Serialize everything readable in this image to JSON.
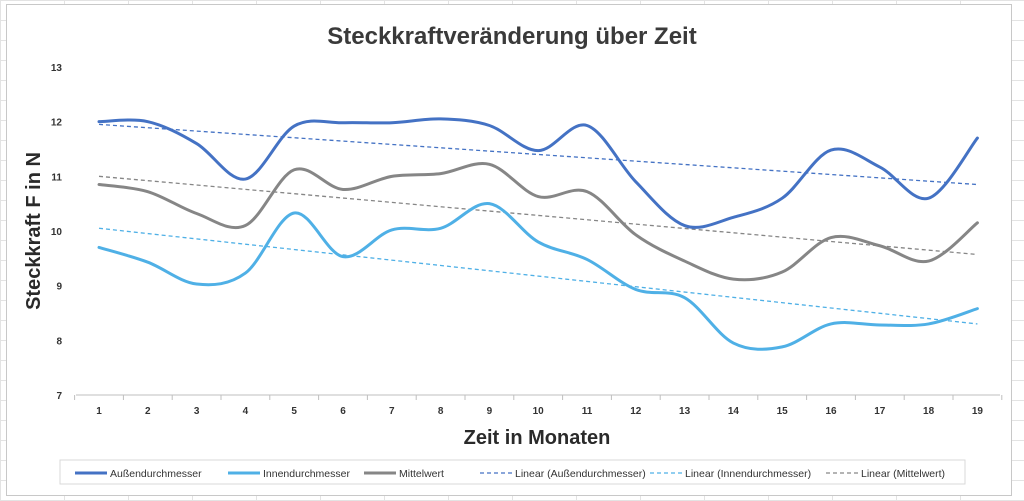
{
  "chart_data": {
    "type": "line",
    "title": "Steckkraftveränderung über Zeit",
    "xlabel": "Zeit in Monaten",
    "ylabel": "Steckkraft F in N",
    "categories": [
      "1",
      "2",
      "3",
      "4",
      "5",
      "6",
      "7",
      "8",
      "9",
      "10",
      "11",
      "12",
      "13",
      "14",
      "15",
      "16",
      "17",
      "18",
      "19"
    ],
    "ylim": [
      7,
      13
    ],
    "yticks": [
      7,
      8,
      9,
      10,
      11,
      12,
      13
    ],
    "grid": false,
    "legend_position": "bottom",
    "series": [
      {
        "name": "Außendurchmesser",
        "color": "#4472c4",
        "style": "solid",
        "values": [
          12.0,
          12.0,
          11.6,
          10.95,
          11.92,
          11.98,
          11.98,
          12.05,
          11.93,
          11.47,
          11.93,
          10.9,
          10.1,
          10.25,
          10.6,
          11.48,
          11.17,
          10.6,
          11.7
        ]
      },
      {
        "name": "Innendurchmesser",
        "color": "#4fb0e6",
        "style": "solid",
        "values": [
          9.7,
          9.43,
          9.03,
          9.23,
          10.33,
          9.53,
          10.02,
          10.05,
          10.5,
          9.8,
          9.48,
          8.93,
          8.78,
          7.95,
          7.88,
          8.3,
          8.28,
          8.3,
          8.58
        ]
      },
      {
        "name": "Mittelwert",
        "color": "#868686",
        "style": "solid",
        "values": [
          10.85,
          10.72,
          10.32,
          10.1,
          11.12,
          10.76,
          11.0,
          11.05,
          11.22,
          10.63,
          10.72,
          9.93,
          9.45,
          9.12,
          9.25,
          9.88,
          9.73,
          9.45,
          10.15
        ]
      },
      {
        "name": "Linear (Außendurchmesser)",
        "color": "#4472c4",
        "style": "dashed",
        "from": 11.95,
        "to": 10.85
      },
      {
        "name": "Linear (Innendurchmesser)",
        "color": "#4fb0e6",
        "style": "dashed",
        "from": 10.05,
        "to": 8.3
      },
      {
        "name": "Linear (Mittelwert)",
        "color": "#868686",
        "style": "dashed",
        "from": 11.0,
        "to": 9.57
      }
    ]
  }
}
